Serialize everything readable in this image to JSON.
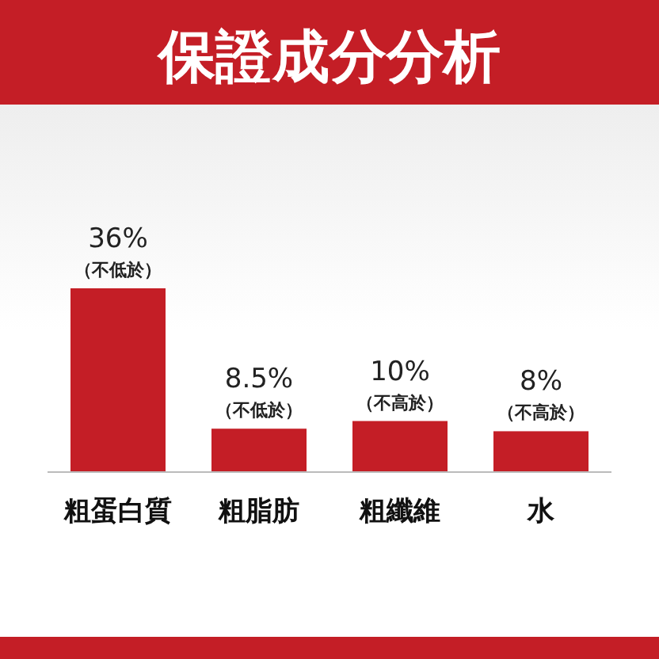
{
  "chart_data": {
    "type": "bar",
    "title": "保證成分分析",
    "categories": [
      "粗蛋白質",
      "粗脂肪",
      "粗纖維",
      "水"
    ],
    "values": [
      36,
      8.5,
      10,
      8
    ],
    "color": "#c41e26",
    "value_labels": [
      "36%",
      "8.5%",
      "10%",
      "8%"
    ],
    "annotations": [
      {
        "text": "（不低於）",
        "x": "粗蛋白質",
        "y": 36
      },
      {
        "text": "（不低於）",
        "x": "粗脂肪",
        "y": 8.5
      },
      {
        "text": "（不高於）",
        "x": "粗纖維",
        "y": 10
      },
      {
        "text": "（不高於）",
        "x": "水",
        "y": 8
      }
    ]
  }
}
